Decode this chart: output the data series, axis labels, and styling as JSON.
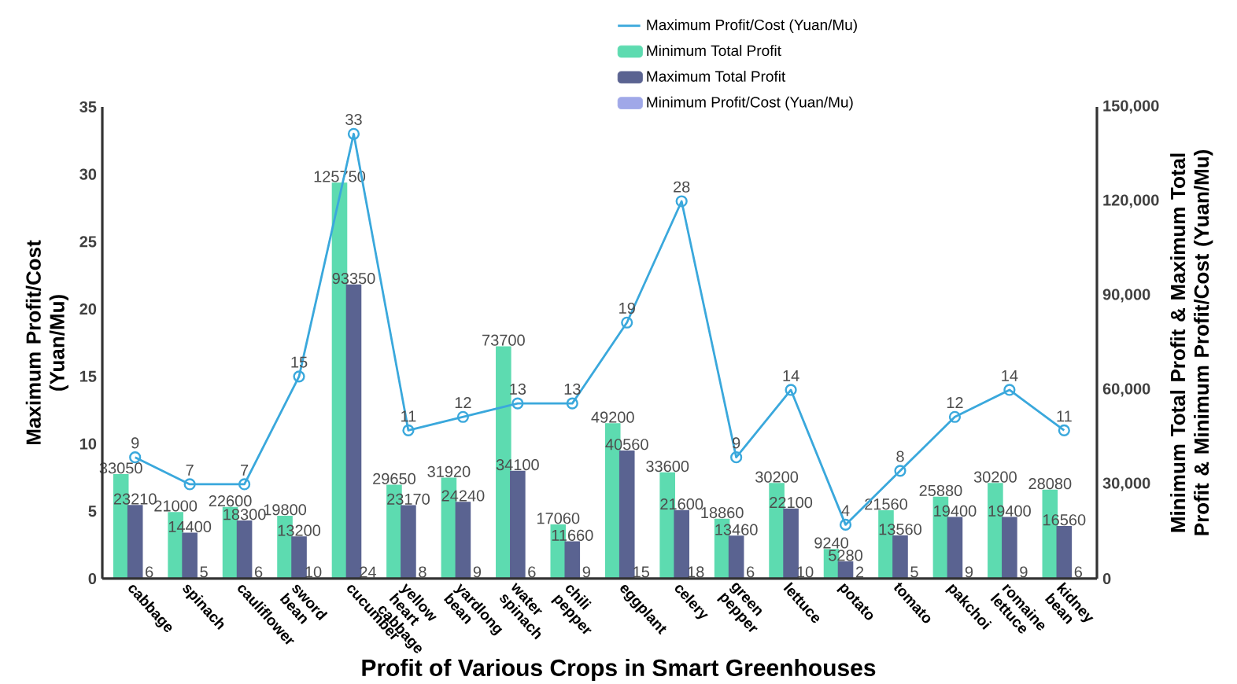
{
  "chart_data": {
    "type": "bar",
    "title": "Profit of Various Crops in Smart Greenhouses",
    "ylabel": "Maximum Profit/Cost (Yuan/Mu)",
    "y2label": "Minimum Total Profit & Maximum Total Profit & Minimum Profit/Cost (Yuan/Mu)",
    "categories": [
      "cabbage",
      "spinach",
      "cauliflower",
      "sword bean",
      "cucumber",
      "yellow heart cabbage",
      "yardlong bean",
      "water spinach",
      "chili pepper",
      "eggplant",
      "celery",
      "green pepper",
      "lettuce",
      "potato",
      "tomato",
      "pakchoi",
      "romaine lettuce",
      "kidney bean"
    ],
    "series": [
      {
        "name": "Maximum Profit/Cost (Yuan/Mu)",
        "type": "line",
        "color": "#3aa8dc",
        "values": [
          9,
          7,
          7,
          15,
          33,
          11,
          12,
          13,
          13,
          19,
          28,
          9,
          14,
          4,
          8,
          12,
          14,
          11
        ]
      },
      {
        "name": "Minimum Total Profit",
        "type": "bar",
        "axis": "y2",
        "color": "#5ddbb0",
        "values": [
          33050,
          21000,
          22600,
          19800,
          125750,
          29650,
          31920,
          73700,
          17060,
          49200,
          33600,
          18860,
          30200,
          9240,
          21560,
          25880,
          30200,
          28080
        ]
      },
      {
        "name": "Maximum Total Profit",
        "type": "bar",
        "axis": "y2",
        "color": "#5a6391",
        "values": [
          23210,
          14400,
          18300,
          13200,
          93350,
          23170,
          24240,
          34100,
          11660,
          40560,
          21600,
          13460,
          22100,
          5280,
          13560,
          19400,
          19400,
          16560
        ]
      },
      {
        "name": "Minimum Profit/Cost (Yuan/Mu)",
        "type": "bar",
        "axis": "y2",
        "color": "#a0a8e8",
        "values": [
          6,
          5,
          6,
          10,
          24,
          8,
          9,
          6,
          9,
          15,
          18,
          6,
          10,
          2,
          5,
          9,
          9,
          6
        ]
      }
    ],
    "ylim": [
      0,
      35
    ],
    "yticks": [
      0,
      5,
      10,
      15,
      20,
      25,
      30,
      35
    ],
    "y2lim": [
      0,
      150000
    ],
    "y2ticks": [
      0,
      {
        "value": 30000,
        "label": "30,000"
      },
      {
        "value": 60000,
        "label": "60,000"
      },
      {
        "value": 90000,
        "label": "90,000"
      },
      {
        "value": 120000,
        "label": "120,000"
      },
      {
        "value": 150000,
        "label": "150,000"
      }
    ],
    "data_labels": true,
    "legend": "top",
    "marker": "circle",
    "grid": false
  }
}
